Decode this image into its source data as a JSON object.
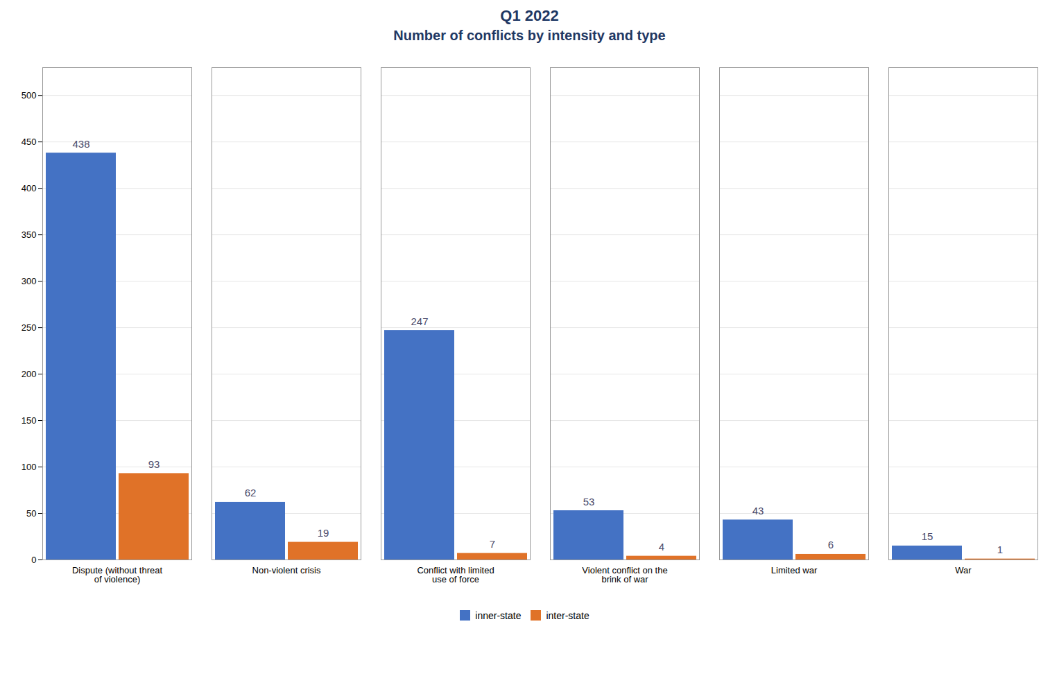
{
  "chart_data": {
    "type": "bar",
    "title": "Q1 2022",
    "subtitle": "Number of conflicts by intensity and type",
    "categories": [
      "Dispute (without threat\nof violence)",
      "Non-violent crisis",
      "Conflict with limited\nuse of force",
      "Violent conflict on the\nbrink of war",
      "Limited war",
      "War"
    ],
    "series": [
      {
        "name": "inner-state",
        "color": "#4472c4",
        "values": [
          438,
          62,
          247,
          53,
          43,
          15
        ]
      },
      {
        "name": "inter-state",
        "color": "#e07228",
        "values": [
          93,
          19,
          7,
          4,
          6,
          1
        ]
      }
    ],
    "ylim": [
      0,
      530
    ],
    "yticks": [
      0,
      50,
      100,
      150,
      200,
      250,
      300,
      350,
      400,
      450,
      500
    ],
    "grid": true,
    "data_labels": true,
    "legend": "bottom"
  }
}
